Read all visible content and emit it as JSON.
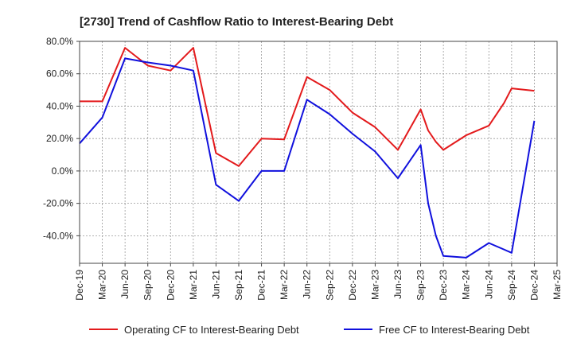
{
  "chart_data": {
    "type": "line",
    "title": "[2730]  Trend of Cashflow Ratio to Interest-Bearing Debt",
    "xlabel": "",
    "ylabel": "",
    "ylim": [
      -57,
      80
    ],
    "y_ticks": [
      80,
      60,
      40,
      20,
      0,
      -20,
      -40
    ],
    "y_tick_labels": [
      "80.0%",
      "60.0%",
      "40.0%",
      "20.0%",
      "0.0%",
      "-20.0%",
      "-40.0%"
    ],
    "x_tick_labels": [
      "Dec-19",
      "Mar-20",
      "Jun-20",
      "Sep-20",
      "Dec-20",
      "Mar-21",
      "Jun-21",
      "Sep-21",
      "Dec-21",
      "Mar-22",
      "Jun-22",
      "Sep-22",
      "Dec-22",
      "Mar-23",
      "Jun-23",
      "Sep-23",
      "Dec-23",
      "Mar-24",
      "Jun-24",
      "Sep-24",
      "Dec-24",
      "Mar-25"
    ],
    "grid": true,
    "legend_position": "bottom",
    "series": [
      {
        "name": "Operating CF to Interest-Bearing Debt",
        "color": "#e31a1c",
        "points": [
          [
            0,
            43
          ],
          [
            1,
            43
          ],
          [
            2,
            76
          ],
          [
            3,
            65
          ],
          [
            4,
            62
          ],
          [
            5,
            76
          ],
          [
            6,
            11
          ],
          [
            7,
            3
          ],
          [
            8,
            20
          ],
          [
            9,
            19.5
          ],
          [
            10,
            58
          ],
          [
            11,
            50
          ],
          [
            12,
            36
          ],
          [
            13,
            27
          ],
          [
            14,
            13
          ],
          [
            15,
            38
          ],
          [
            15.33,
            25
          ],
          [
            15.67,
            18
          ],
          [
            16,
            13
          ],
          [
            17,
            22
          ],
          [
            18,
            28
          ],
          [
            18.67,
            42
          ],
          [
            19,
            51
          ],
          [
            20,
            49.5
          ]
        ]
      },
      {
        "name": "Free CF to Interest-Bearing Debt",
        "color": "#1010dd",
        "points": [
          [
            0,
            17
          ],
          [
            1,
            33
          ],
          [
            2,
            69.5
          ],
          [
            3,
            67
          ],
          [
            4,
            65
          ],
          [
            5,
            62
          ],
          [
            6,
            -8.5
          ],
          [
            7,
            -18.5
          ],
          [
            8,
            0
          ],
          [
            9,
            0
          ],
          [
            10,
            44
          ],
          [
            11,
            35
          ],
          [
            12,
            23
          ],
          [
            13,
            12
          ],
          [
            14,
            -4.5
          ],
          [
            15,
            16
          ],
          [
            15.33,
            -20
          ],
          [
            15.67,
            -40
          ],
          [
            16,
            -52.5
          ],
          [
            17,
            -53.5
          ],
          [
            18,
            -44.5
          ],
          [
            19,
            -50.5
          ],
          [
            20,
            31
          ]
        ]
      }
    ]
  }
}
